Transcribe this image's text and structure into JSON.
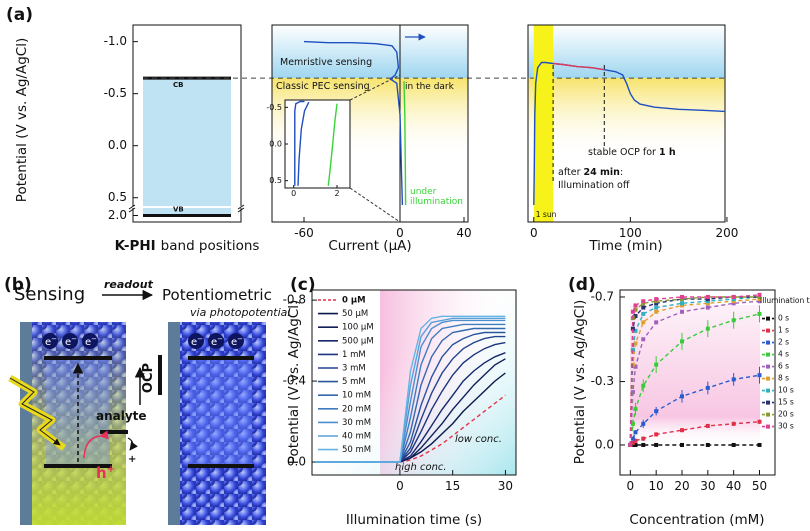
{
  "panel_labels": [
    "(a)",
    "(b)",
    "(c)",
    "(d)"
  ],
  "chart_data": [
    {
      "type": "band",
      "ylabel": "Potential (V vs. Ag/AgCl)",
      "xlabel_bold": "K-PHI",
      "xlabel": "band positions",
      "ylim": [
        0.57,
        -1.16
      ],
      "yticks": [
        {
          "value": -1,
          "label": "-1.0"
        },
        -0.5,
        {
          "value": 0,
          "label": "0.0"
        },
        0.5
      ],
      "break_ylim": [
        2.1,
        1.9
      ],
      "break_yticks": [
        {
          "value": 2,
          "label": "2.0"
        }
      ],
      "bands": [
        {
          "name": "CB",
          "value": -0.65
        },
        {
          "name": "VB",
          "value": 2
        }
      ],
      "fill_color": "#bfe3f2"
    },
    {
      "type": "line",
      "xlabel": "Current (µA)",
      "xlim": [
        -80,
        42.5
      ],
      "xticks": [
        -60,
        0,
        40
      ],
      "ylim": [
        0.57,
        -1.16
      ],
      "zero_line": true,
      "annotations": [
        "Memristive sensing",
        "Classic PEC sensing"
      ],
      "series": [
        {
          "name": "in the dark",
          "color": "#1f4fc0",
          "x": [
            -60,
            -45,
            -30,
            -15,
            -5,
            -2,
            -1,
            -3,
            -6,
            -2,
            0,
            0.5,
            1,
            1.5
          ],
          "y": [
            -1,
            -0.99,
            -0.99,
            -0.98,
            -0.96,
            -0.9,
            -0.75,
            -0.68,
            -0.64,
            -0.6,
            -0.3,
            0,
            0.3,
            0.57
          ]
        },
        {
          "name": "under illumination",
          "color": "#3ad43a",
          "x": [
            2.5,
            3,
            3.2,
            3.4,
            3.5
          ],
          "y": [
            -0.62,
            -0.3,
            0,
            0.3,
            0.57
          ]
        }
      ]
    },
    {
      "type": "line",
      "inset": true,
      "xlim": [
        -0.4,
        2.6
      ],
      "xticks": [
        0,
        2
      ],
      "ylim": [
        0.6,
        -0.6
      ],
      "yticks": [
        -0.5,
        {
          "value": 0,
          "label": "0.0"
        },
        0.5
      ],
      "series": [
        {
          "color": "#1f4fc0",
          "x": [
            0.05,
            0.05,
            0.05,
            0.1,
            0.3,
            0.5
          ],
          "y": [
            0.57,
            0,
            -0.45,
            -0.55,
            -0.58,
            -0.58
          ]
        },
        {
          "color": "#1f4fc0",
          "x": [
            0.2,
            0.25,
            0.35,
            0.5,
            0.7
          ],
          "y": [
            0.57,
            0.2,
            -0.2,
            -0.45,
            -0.57
          ]
        },
        {
          "color": "#3ad43a",
          "x": [
            1.6,
            1.7,
            1.8,
            1.9,
            2
          ],
          "y": [
            0.57,
            0.3,
            0,
            -0.3,
            -0.55
          ]
        }
      ]
    },
    {
      "type": "line",
      "xlabel": "Time (min)",
      "xlim": [
        -6,
        198
      ],
      "xticks": [
        0,
        100,
        200
      ],
      "ylim": [
        0.57,
        -1.16
      ],
      "sun_span": [
        0,
        20
      ],
      "sun_label": "1 sun",
      "event_lines": [
        20,
        73
      ],
      "note_ocp": [
        "stable OCP for ",
        "1 h"
      ],
      "note_off": [
        "after ",
        "24 min",
        ":"
      ],
      "note_off2": "Illumination off",
      "series": [
        {
          "color": "#1f4fc0",
          "x": [
            0,
            0.5,
            1,
            2,
            4,
            8,
            12,
            20,
            30,
            45,
            60,
            73,
            85,
            92,
            96,
            100,
            104,
            110,
            125,
            150,
            175,
            198
          ],
          "y": [
            0.57,
            0.2,
            -0.3,
            -0.6,
            -0.75,
            -0.8,
            -0.8,
            -0.79,
            -0.78,
            -0.76,
            -0.75,
            -0.73,
            -0.71,
            -0.68,
            -0.6,
            -0.5,
            -0.44,
            -0.4,
            -0.37,
            -0.35,
            -0.34,
            -0.33
          ]
        },
        {
          "color": "#e03a5a",
          "x": [
            20,
            30,
            45,
            60,
            73
          ],
          "y": [
            -0.79,
            -0.78,
            -0.76,
            -0.75,
            -0.73
          ]
        }
      ]
    },
    {
      "type": "line",
      "ylabel": "Potential (V vs. Ag/AgCl)",
      "xlabel": "Illumination time (s)",
      "xlim": [
        -25,
        33
      ],
      "xticks": [
        0,
        15,
        30
      ],
      "ylim": [
        0.064,
        -0.85
      ],
      "yticks": [
        -0.8,
        -0.4,
        {
          "value": 0,
          "label": "0.0"
        }
      ],
      "legend": "upper left",
      "annotations": [
        "high conc.",
        "low conc."
      ],
      "x": [
        -24,
        0,
        3,
        6,
        9,
        12,
        15,
        18,
        21,
        24,
        27,
        30
      ],
      "series": [
        {
          "name": "0 µM",
          "color": "#e8304a",
          "linestyle": "dashed",
          "values": [
            0,
            0,
            -0.01,
            -0.03,
            -0.06,
            -0.09,
            -0.13,
            -0.17,
            -0.21,
            -0.25,
            -0.29,
            -0.33
          ]
        },
        {
          "name": "50 µM",
          "color": "#0a1a4a",
          "values": [
            0,
            0,
            -0.02,
            -0.05,
            -0.09,
            -0.14,
            -0.19,
            -0.25,
            -0.3,
            -0.35,
            -0.4,
            -0.44
          ]
        },
        {
          "name": "100 µM",
          "color": "#101e5a",
          "values": [
            0,
            0,
            -0.02,
            -0.07,
            -0.13,
            -0.19,
            -0.26,
            -0.32,
            -0.38,
            -0.43,
            -0.48,
            -0.51
          ]
        },
        {
          "name": "500 µM",
          "color": "#16286e",
          "values": [
            0,
            0,
            -0.03,
            -0.1,
            -0.18,
            -0.26,
            -0.33,
            -0.4,
            -0.45,
            -0.49,
            -0.52,
            -0.54
          ]
        },
        {
          "name": "1 mM",
          "color": "#1c3580",
          "values": [
            0,
            0,
            -0.05,
            -0.15,
            -0.26,
            -0.35,
            -0.43,
            -0.49,
            -0.53,
            -0.56,
            -0.58,
            -0.59
          ]
        },
        {
          "name": "3 mM",
          "color": "#224590",
          "values": [
            0,
            0,
            -0.07,
            -0.21,
            -0.34,
            -0.44,
            -0.51,
            -0.56,
            -0.59,
            -0.61,
            -0.62,
            -0.62
          ]
        },
        {
          "name": "5 mM",
          "color": "#2a55a0",
          "values": [
            0,
            0,
            -0.1,
            -0.28,
            -0.42,
            -0.52,
            -0.58,
            -0.61,
            -0.63,
            -0.64,
            -0.64,
            -0.64
          ]
        },
        {
          "name": "10 mM",
          "color": "#3468b0",
          "values": [
            0,
            0,
            -0.15,
            -0.38,
            -0.52,
            -0.6,
            -0.64,
            -0.65,
            -0.66,
            -0.66,
            -0.66,
            -0.66
          ]
        },
        {
          "name": "20 mM",
          "color": "#3f7cc0",
          "values": [
            0,
            0,
            -0.22,
            -0.48,
            -0.61,
            -0.66,
            -0.67,
            -0.68,
            -0.68,
            -0.68,
            -0.68,
            -0.68
          ]
        },
        {
          "name": "30 mM",
          "color": "#4b8fce",
          "values": [
            0,
            0,
            -0.3,
            -0.57,
            -0.66,
            -0.69,
            -0.7,
            -0.7,
            -0.7,
            -0.7,
            -0.7,
            -0.7
          ]
        },
        {
          "name": "40 mM",
          "color": "#58a2da",
          "values": [
            0,
            0,
            -0.38,
            -0.62,
            -0.69,
            -0.7,
            -0.71,
            -0.71,
            -0.71,
            -0.71,
            -0.71,
            -0.71
          ]
        },
        {
          "name": "50 mM",
          "color": "#65b4e4",
          "values": [
            0,
            0,
            -0.45,
            -0.66,
            -0.71,
            -0.72,
            -0.72,
            -0.72,
            -0.72,
            -0.72,
            -0.72,
            -0.72
          ]
        }
      ]
    },
    {
      "type": "line",
      "ylabel": "Potential (V vs. Ag/AgCl)",
      "xlabel": "Concentration (mM)",
      "xlim": [
        -4,
        56
      ],
      "xticks": [
        0,
        10,
        20,
        30,
        40,
        50
      ],
      "ylim": [
        0.142,
        -0.733
      ],
      "yticks": [
        -0.7,
        -0.3,
        {
          "value": 0,
          "label": "0.0"
        }
      ],
      "legend": "right",
      "legend_title": "Illumination time:",
      "marker": "square",
      "x": [
        0,
        1,
        2,
        5,
        10,
        20,
        30,
        40,
        50
      ],
      "series": [
        {
          "name": "0 s",
          "color": "#111111",
          "linestyle": "dashed",
          "values": [
            0,
            0,
            0,
            0,
            0,
            0,
            0,
            0,
            0
          ]
        },
        {
          "name": "1 s",
          "color": "#e0304a",
          "linestyle": "dashed",
          "values": [
            0,
            -0.01,
            -0.02,
            -0.03,
            -0.05,
            -0.07,
            -0.09,
            -0.1,
            -0.11
          ],
          "errors": [
            0,
            0.005,
            0.01,
            0.01,
            0.01,
            0.01,
            0.01,
            0.01,
            0.01
          ]
        },
        {
          "name": "2 s",
          "color": "#2a5cd0",
          "linestyle": "dashed",
          "values": [
            0,
            -0.03,
            -0.06,
            -0.1,
            -0.16,
            -0.23,
            -0.27,
            -0.31,
            -0.33
          ],
          "errors": [
            0,
            0.01,
            0.01,
            0.02,
            0.02,
            0.03,
            0.03,
            0.03,
            0.04
          ]
        },
        {
          "name": "4 s",
          "color": "#3acb3a",
          "linestyle": "dashed",
          "values": [
            0,
            -0.1,
            -0.17,
            -0.28,
            -0.38,
            -0.49,
            -0.55,
            -0.59,
            -0.62
          ],
          "errors": [
            0,
            0.02,
            0.03,
            0.03,
            0.04,
            0.04,
            0.04,
            0.04,
            0.04
          ]
        },
        {
          "name": "6 s",
          "color": "#a060c0",
          "linestyle": "dashed",
          "values": [
            0,
            -0.25,
            -0.37,
            -0.5,
            -0.58,
            -0.63,
            -0.65,
            -0.67,
            -0.68
          ]
        },
        {
          "name": "8 s",
          "color": "#e0a030",
          "linestyle": "dashed",
          "values": [
            0,
            -0.38,
            -0.48,
            -0.58,
            -0.63,
            -0.66,
            -0.67,
            -0.68,
            -0.69
          ]
        },
        {
          "name": "10 s",
          "color": "#30b0c0",
          "linestyle": "dashed",
          "values": [
            0,
            -0.45,
            -0.54,
            -0.62,
            -0.65,
            -0.67,
            -0.68,
            -0.69,
            -0.7
          ]
        },
        {
          "name": "15 s",
          "color": "#283070",
          "linestyle": "dashed",
          "values": [
            0,
            -0.55,
            -0.61,
            -0.65,
            -0.67,
            -0.69,
            -0.69,
            -0.7,
            -0.7
          ]
        },
        {
          "name": "20 s",
          "color": "#8a9a30",
          "linestyle": "dashed",
          "values": [
            0,
            -0.6,
            -0.64,
            -0.67,
            -0.68,
            -0.69,
            -0.7,
            -0.7,
            -0.7
          ]
        },
        {
          "name": "30 s",
          "color": "#e04090",
          "linestyle": "dashed",
          "values": [
            0,
            -0.63,
            -0.66,
            -0.68,
            -0.69,
            -0.7,
            -0.7,
            -0.7,
            -0.71
          ]
        }
      ]
    }
  ],
  "diagram": {
    "sensing": "Sensing",
    "readout": "readout",
    "potentiometric": "Potentiometric",
    "via": "via photopotential",
    "ocp": "OCP",
    "analyte": "analyte",
    "plus": "+",
    "hole": "h",
    "hole_sup": "+",
    "electron": "e",
    "electron_sup": "−"
  }
}
